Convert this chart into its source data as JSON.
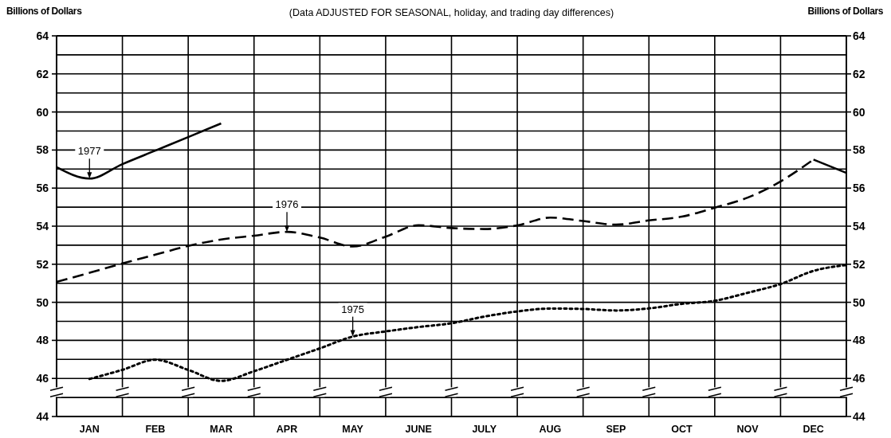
{
  "chart_data": {
    "type": "line",
    "title": "(Data ADJUSTED FOR SEASONAL, holiday, and trading day differences)",
    "ylabel": "Billions of Dollars",
    "y2label": "Billions of Dollars",
    "categories": [
      null,
      "JAN",
      null,
      "FEB",
      null,
      "MAR",
      null,
      "APR",
      null,
      "MAY",
      null,
      "JUNE",
      null,
      "JULY",
      null,
      "AUG",
      null,
      "SEP",
      null,
      "OCT",
      null,
      "NOV",
      null,
      "DEC",
      null
    ],
    "ylim": [
      44,
      64
    ],
    "yticks": [
      44,
      {
        "value": 45,
        "label": null
      },
      46,
      {
        "value": 47,
        "label": null
      },
      48,
      {
        "value": 49,
        "label": null
      },
      50,
      {
        "value": 51,
        "label": null
      },
      52,
      {
        "value": 53,
        "label": null
      },
      54,
      {
        "value": 55,
        "label": null
      },
      56,
      {
        "value": 57,
        "label": null
      },
      58,
      {
        "value": 59,
        "label": null
      },
      60,
      {
        "value": 61,
        "label": null
      },
      62,
      {
        "value": 63,
        "label": null
      },
      64
    ],
    "y2lim": [
      44,
      64
    ],
    "y2ticks": [
      44,
      46,
      48,
      50,
      52,
      54,
      56,
      58,
      60,
      62,
      64
    ],
    "grid": true,
    "marker": "none",
    "series": [
      {
        "color": "#000000",
        "line_style": "solid",
        "values": [
          57.1,
          56.5,
          57.26,
          57.97,
          58.68,
          59.4,
          null,
          null,
          null,
          null,
          null,
          null,
          null,
          null,
          null,
          null,
          null,
          null,
          null,
          null,
          null,
          null,
          null,
          57.5,
          56.8
        ]
      },
      {
        "color": "#000000",
        "line_style": "dashed",
        "values": [
          51.07,
          51.55,
          52.04,
          52.5,
          52.96,
          53.3,
          53.5,
          53.7,
          53.4,
          52.93,
          53.45,
          54.05,
          53.9,
          53.85,
          54.04,
          54.45,
          54.27,
          54.08,
          54.3,
          54.5,
          54.97,
          55.5,
          56.35,
          57.5,
          null
        ]
      },
      {
        "color": "#000000",
        "line_style": "dotted",
        "values": [
          null,
          45.97,
          46.45,
          46.98,
          46.45,
          45.87,
          46.38,
          46.98,
          47.58,
          48.2,
          48.47,
          48.7,
          48.9,
          49.25,
          49.52,
          49.67,
          49.65,
          49.57,
          49.68,
          49.92,
          50.08,
          50.5,
          50.96,
          51.65,
          51.96
        ]
      }
    ],
    "annotations": [
      {
        "text": "1977",
        "x": "JAN",
        "y": 56.5
      },
      {
        "text": "1976",
        "x": "APR",
        "y": 53.7
      },
      {
        "text": "1975",
        "x": "MAY",
        "y": 48.2
      }
    ]
  }
}
